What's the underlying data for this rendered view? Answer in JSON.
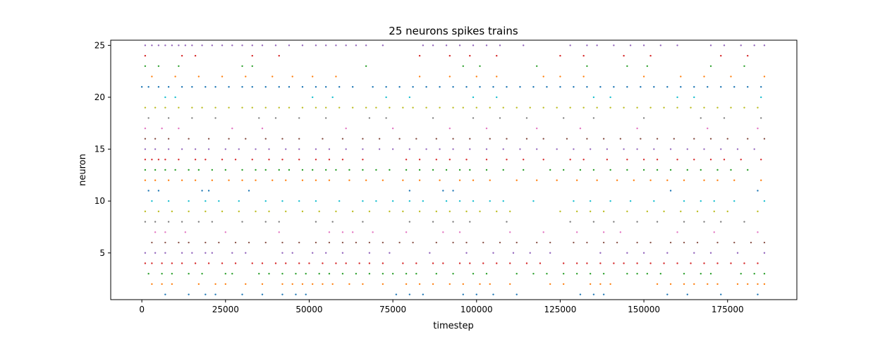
{
  "chart_data": {
    "type": "scatter",
    "title": "25 neurons spikes trains",
    "xlabel": "timestep",
    "ylabel": "neuron",
    "xlim": [
      -9300,
      195700
    ],
    "ylim": [
      0.5,
      25.5
    ],
    "xticks": [
      0,
      25000,
      50000,
      75000,
      100000,
      125000,
      150000,
      175000
    ],
    "yticks": [
      5,
      10,
      15,
      20,
      25
    ],
    "grid": false,
    "legend": "none",
    "palette": [
      "#1f77b4",
      "#ff7f0e",
      "#2ca02c",
      "#d62728",
      "#9467bd",
      "#8c564b",
      "#e377c2",
      "#7f7f7f",
      "#bcbd22",
      "#17becf"
    ],
    "series": [
      {
        "neuron": 1,
        "spikes": [
          7000,
          14000,
          19000,
          22000,
          30000,
          36000,
          42000,
          46000,
          49000,
          76000,
          80000,
          84000,
          96000,
          100000,
          105000,
          112000,
          131000,
          135000,
          138000,
          157000,
          163000,
          173000,
          184000
        ]
      },
      {
        "neuron": 2,
        "spikes": [
          3000,
          6000,
          9000,
          17000,
          22000,
          25000,
          31000,
          36000,
          42000,
          45000,
          48000,
          51000,
          54000,
          57000,
          62000,
          66000,
          72000,
          79000,
          83000,
          87000,
          92000,
          96000,
          101000,
          104000,
          110000,
          122000,
          126000,
          134000,
          137000,
          140000,
          154000,
          158000,
          162000,
          165000,
          169000,
          172000,
          178000,
          181000,
          184000,
          186000
        ]
      },
      {
        "neuron": 3,
        "spikes": [
          2000,
          6000,
          9000,
          14000,
          18000,
          25000,
          27000,
          35000,
          38000,
          42000,
          46000,
          49000,
          53000,
          56000,
          60000,
          64000,
          68000,
          72000,
          75000,
          79000,
          82000,
          88000,
          93000,
          99000,
          103000,
          112000,
          117000,
          121000,
          126000,
          130000,
          134000,
          138000,
          145000,
          148000,
          151000,
          155000,
          162000,
          167000,
          170000,
          179000,
          183000,
          186000
        ]
      },
      {
        "neuron": 4,
        "spikes": [
          1000,
          3000,
          6000,
          9000,
          12000,
          16000,
          20000,
          24000,
          28000,
          33000,
          36000,
          40000,
          43000,
          47000,
          50000,
          54000,
          58000,
          61000,
          65000,
          68000,
          72000,
          78000,
          82000,
          87000,
          90000,
          95000,
          98000,
          102000,
          106000,
          110000,
          115000,
          119000,
          126000,
          130000,
          133000,
          137000,
          141000,
          144000,
          148000,
          152000,
          156000,
          160000,
          164000,
          168000,
          172000,
          176000,
          180000,
          184000
        ]
      },
      {
        "neuron": 5,
        "spikes": [
          1000,
          4000,
          7000,
          12000,
          15000,
          19000,
          21000,
          27000,
          31000,
          42000,
          45000,
          51000,
          55000,
          60000,
          68000,
          74000,
          86000,
          97000,
          105000,
          111000,
          116000,
          122000,
          137000,
          145000,
          150000,
          157000,
          165000,
          170000,
          178000,
          186000
        ]
      },
      {
        "neuron": 6,
        "spikes": [
          3000,
          7000,
          11000,
          14000,
          19000,
          23000,
          28000,
          32000,
          37000,
          42000,
          47000,
          52000,
          56000,
          60000,
          64000,
          68000,
          72000,
          77000,
          81000,
          88000,
          93000,
          97000,
          102000,
          107000,
          112000,
          118000,
          122000,
          129000,
          133000,
          138000,
          142000,
          148000,
          152000,
          158000,
          162000,
          166000,
          172000,
          177000,
          182000,
          186000
        ]
      },
      {
        "neuron": 7,
        "spikes": [
          4000,
          7000,
          13000,
          25000,
          41000,
          56000,
          60000,
          63000,
          69000,
          79000,
          90000,
          95000,
          110000,
          120000,
          130000,
          138000,
          143000,
          160000,
          171000,
          184000
        ]
      },
      {
        "neuron": 8,
        "spikes": [
          1000,
          4000,
          8000,
          12000,
          17000,
          21000,
          30000,
          37000,
          41000,
          52000,
          57000,
          66000,
          80000,
          87000,
          93000,
          98000,
          109000,
          128000,
          135000,
          141000,
          148000,
          154000,
          162000,
          168000,
          173000,
          180000
        ]
      },
      {
        "neuron": 9,
        "spikes": [
          1000,
          5000,
          9000,
          14000,
          19000,
          24000,
          29000,
          34000,
          38000,
          43000,
          48000,
          53000,
          58000,
          63000,
          68000,
          74000,
          78000,
          83000,
          88000,
          92000,
          97000,
          101000,
          106000,
          110000,
          125000,
          130000,
          134000,
          138000,
          145000,
          151000,
          156000,
          161000,
          166000,
          171000,
          175000,
          184000
        ]
      },
      {
        "neuron": 10,
        "spikes": [
          3000,
          8000,
          14000,
          19000,
          23000,
          29000,
          37000,
          42000,
          47000,
          52000,
          59000,
          66000,
          70000,
          75000,
          80000,
          84000,
          91000,
          95000,
          99000,
          104000,
          108000,
          117000,
          129000,
          134000,
          140000,
          146000,
          153000,
          162000,
          167000,
          171000,
          177000,
          186000
        ]
      },
      {
        "neuron": 11,
        "spikes": [
          2000,
          5000,
          18000,
          20000,
          32000,
          80000,
          90000,
          93000,
          158000,
          184000
        ]
      },
      {
        "neuron": 12,
        "spikes": [
          1000,
          4000,
          8000,
          12000,
          16000,
          21000,
          26000,
          30000,
          34000,
          39000,
          43000,
          48000,
          52000,
          56000,
          62000,
          67000,
          72000,
          78000,
          83000,
          89000,
          95000,
          99000,
          104000,
          112000,
          118000,
          124000,
          130000,
          136000,
          142000,
          147000,
          152000,
          157000,
          162000,
          168000,
          172000,
          177000,
          185000
        ]
      },
      {
        "neuron": 13,
        "spikes": [
          1000,
          4000,
          7000,
          10000,
          14000,
          17000,
          21000,
          25000,
          30000,
          34000,
          37000,
          41000,
          44000,
          48000,
          51000,
          55000,
          58000,
          62000,
          66000,
          70000,
          74000,
          79000,
          83000,
          87000,
          91000,
          95000,
          98000,
          103000,
          108000,
          114000,
          122000,
          126000,
          131000,
          135000,
          140000,
          145000,
          150000,
          154000,
          158000,
          163000,
          167000,
          172000,
          176000,
          181000
        ]
      },
      {
        "neuron": 14,
        "spikes": [
          1000,
          3000,
          5000,
          7000,
          11000,
          16000,
          19000,
          24000,
          28000,
          33000,
          38000,
          42000,
          47000,
          52000,
          56000,
          60000,
          66000,
          79000,
          83000,
          88000,
          92000,
          97000,
          103000,
          109000,
          114000,
          120000,
          128000,
          132000,
          139000,
          145000,
          150000,
          154000,
          160000,
          165000,
          170000,
          174000,
          179000,
          185000
        ]
      },
      {
        "neuron": 15,
        "spikes": [
          1000,
          4000,
          8000,
          12000,
          16000,
          20000,
          25000,
          29000,
          34000,
          38000,
          43000,
          47000,
          52000,
          56000,
          61000,
          66000,
          71000,
          75000,
          80000,
          85000,
          89000,
          93000,
          98000,
          103000,
          108000,
          113000,
          118000,
          124000,
          129000,
          134000,
          139000,
          144000,
          148000,
          153000,
          158000,
          163000,
          168000,
          173000,
          178000,
          183000
        ]
      },
      {
        "neuron": 16,
        "spikes": [
          1000,
          4000,
          8000,
          14000,
          20000,
          26000,
          31000,
          37000,
          42000,
          47000,
          54000,
          60000,
          66000,
          71000,
          77000,
          82000,
          88000,
          93000,
          98000,
          104000,
          109000,
          115000,
          120000,
          127000,
          133000,
          138000,
          143000,
          149000,
          154000,
          159000,
          165000,
          170000,
          175000,
          181000,
          186000
        ]
      },
      {
        "neuron": 17,
        "spikes": [
          1000,
          6000,
          11000,
          27000,
          36000,
          61000,
          75000,
          92000,
          103000,
          118000,
          131000,
          148000,
          169000,
          184000
        ]
      },
      {
        "neuron": 18,
        "spikes": [
          2000,
          8000,
          15000,
          22000,
          35000,
          40000,
          47000,
          55000,
          68000,
          73000,
          87000,
          99000,
          107000,
          115000,
          126000,
          135000,
          150000,
          167000,
          174000,
          185000
        ]
      },
      {
        "neuron": 19,
        "spikes": [
          1000,
          4000,
          7000,
          11000,
          15000,
          18000,
          22000,
          26000,
          30000,
          33000,
          37000,
          41000,
          44000,
          48000,
          52000,
          55000,
          59000,
          63000,
          67000,
          70000,
          74000,
          78000,
          81000,
          85000,
          89000,
          93000,
          96000,
          100000,
          104000,
          108000,
          112000,
          116000,
          120000,
          124000,
          128000,
          132000,
          136000,
          140000,
          144000,
          148000,
          152000,
          156000,
          160000,
          164000,
          168000,
          172000,
          176000,
          180000,
          184000
        ]
      },
      {
        "neuron": 20,
        "spikes": [
          7000,
          10000,
          51000,
          57000,
          73000,
          80000,
          99000,
          106000,
          135000,
          140000,
          160000,
          165000,
          185000
        ]
      },
      {
        "neuron": 21,
        "spikes": [
          0,
          2000,
          5000,
          8000,
          12000,
          15000,
          19000,
          22000,
          26000,
          30000,
          33000,
          37000,
          41000,
          44000,
          48000,
          52000,
          55000,
          59000,
          63000,
          69000,
          73000,
          77000,
          81000,
          85000,
          89000,
          93000,
          97000,
          101000,
          105000,
          109000,
          113000,
          117000,
          121000,
          125000,
          129000,
          133000,
          137000,
          141000,
          145000,
          149000,
          153000,
          157000,
          161000,
          165000,
          169000,
          173000,
          177000,
          181000,
          185000
        ]
      },
      {
        "neuron": 22,
        "spikes": [
          3000,
          10000,
          17000,
          24000,
          31000,
          39000,
          45000,
          51000,
          58000,
          83000,
          92000,
          100000,
          106000,
          120000,
          125000,
          132000,
          150000,
          161000,
          168000,
          176000,
          186000
        ]
      },
      {
        "neuron": 23,
        "spikes": [
          1000,
          5000,
          11000,
          30000,
          33000,
          67000,
          96000,
          101000,
          118000,
          133000,
          145000,
          151000,
          170000,
          180000
        ]
      },
      {
        "neuron": 24,
        "spikes": [
          1000,
          12000,
          16000,
          33000,
          41000,
          83000,
          92000,
          98000,
          106000,
          125000,
          132000,
          144000,
          152000,
          173000,
          181000
        ]
      },
      {
        "neuron": 25,
        "spikes": [
          1000,
          3000,
          5000,
          7000,
          9000,
          11000,
          13000,
          15000,
          18000,
          21000,
          24000,
          27000,
          30000,
          33000,
          36000,
          40000,
          44000,
          48000,
          52000,
          55000,
          58000,
          61000,
          64000,
          67000,
          72000,
          84000,
          87000,
          91000,
          95000,
          99000,
          103000,
          107000,
          114000,
          128000,
          133000,
          136000,
          141000,
          146000,
          150000,
          155000,
          160000,
          170000,
          174000,
          179000,
          183000,
          186000
        ]
      }
    ]
  }
}
